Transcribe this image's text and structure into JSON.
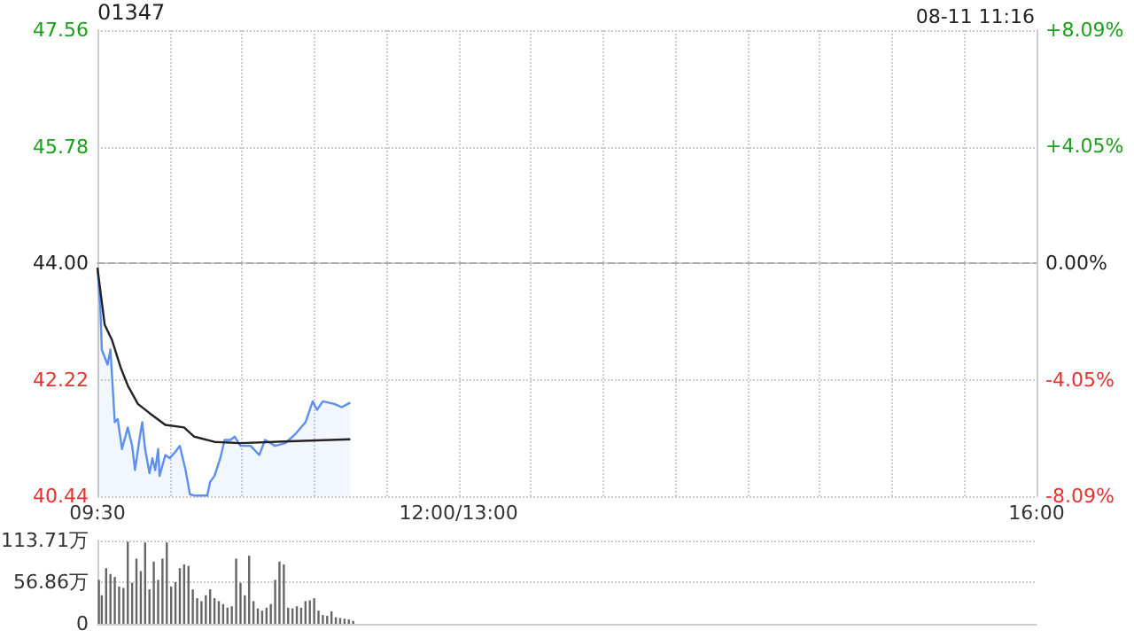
{
  "chart_data": [
    {
      "type": "line",
      "title": "01347",
      "annotations": [
        "08-11 11:16"
      ],
      "xlim": [
        9.5,
        16
      ],
      "xticks": [
        {
          "value": 9.5,
          "label": "09:30"
        },
        {
          "value": 10,
          "label": null
        },
        {
          "value": 10.5,
          "label": null
        },
        {
          "value": 11,
          "label": null
        },
        {
          "value": 11.5,
          "label": null
        },
        {
          "value": 12,
          "label": "12:00/13:00"
        },
        {
          "value": 12.5,
          "label": null
        },
        {
          "value": 13,
          "label": null
        },
        {
          "value": 13.5,
          "label": null
        },
        {
          "value": 14,
          "label": null
        },
        {
          "value": 14.5,
          "label": null
        },
        {
          "value": 15,
          "label": null
        },
        {
          "value": 15.5,
          "label": null
        },
        {
          "value": 16,
          "label": "16:00"
        }
      ],
      "ylim": [
        40.44,
        47.56
      ],
      "yticks": [
        {
          "value": 40.44,
          "label": "40.44"
        },
        {
          "value": 42.22,
          "label": "42.22"
        },
        {
          "value": 44,
          "label": "44.00"
        },
        {
          "value": 45.78,
          "label": "45.78"
        },
        {
          "value": 47.56,
          "label": "47.56"
        }
      ],
      "y2lim": [
        -8.09,
        8.09
      ],
      "y2ticks": [
        {
          "value": -8.09,
          "label": "-8.09%"
        },
        {
          "value": -4.05,
          "label": "-4.05%"
        },
        {
          "value": 0,
          "label": "0.00%"
        },
        {
          "value": 4.05,
          "label": "+4.05%"
        },
        {
          "value": 8.09,
          "label": "+8.09%"
        }
      ],
      "ref_lines": [
        {
          "axis": "y",
          "value": 44,
          "color": "#aaaaaa",
          "line_style": "dashed"
        }
      ],
      "grid": true,
      "marker": "none",
      "series": [
        {
          "type": "area",
          "color": "#5b8ff0",
          "x": [
            9.5,
            9.52,
            9.53,
            9.57,
            9.59,
            9.6,
            9.62,
            9.64,
            9.67,
            9.71,
            9.74,
            9.76,
            9.79,
            9.81,
            9.83,
            9.86,
            9.88,
            9.9,
            9.92,
            9.93,
            9.97,
            10.0,
            10.04,
            10.07,
            10.11,
            10.14,
            10.17,
            10.23,
            10.26,
            10.28,
            10.31,
            10.35,
            10.38,
            10.42,
            10.45,
            10.49,
            10.56,
            10.62,
            10.66,
            10.73,
            10.8,
            10.87,
            10.94,
            10.99,
            11.02,
            11.06,
            11.14,
            11.19,
            11.25
          ],
          "values": [
            43.93,
            43.33,
            42.68,
            42.45,
            42.68,
            42.31,
            41.57,
            41.62,
            41.16,
            41.49,
            41.21,
            40.84,
            41.3,
            41.57,
            41.16,
            40.79,
            41.02,
            40.84,
            41.16,
            40.75,
            41.07,
            41.02,
            41.12,
            41.21,
            40.84,
            40.47,
            40.45,
            40.45,
            40.45,
            40.66,
            40.75,
            41.02,
            41.3,
            41.3,
            41.35,
            41.21,
            41.21,
            41.07,
            41.3,
            41.21,
            41.25,
            41.39,
            41.57,
            41.89,
            41.76,
            41.89,
            41.85,
            41.8,
            41.87
          ]
        },
        {
          "color": "#222222",
          "x": [
            9.5,
            9.55,
            9.6,
            9.66,
            9.71,
            9.78,
            9.86,
            9.97,
            10.1,
            10.17,
            10.31,
            10.49,
            10.83,
            11.25
          ],
          "values": [
            43.93,
            43.06,
            42.83,
            42.41,
            42.13,
            41.85,
            41.71,
            41.53,
            41.49,
            41.35,
            41.27,
            41.25,
            41.28,
            41.31
          ]
        }
      ]
    },
    {
      "type": "bar",
      "xlim": [
        9.5,
        16
      ],
      "ylim": [
        0,
        113.71
      ],
      "yticks": [
        {
          "value": 0,
          "label": "0"
        },
        {
          "value": 56.86,
          "label": "56.86万"
        },
        {
          "value": 113.71,
          "label": "113.71万"
        }
      ],
      "tick_labels": "y",
      "grid": "y",
      "x": [
        9.51,
        9.53,
        9.56,
        9.59,
        9.62,
        9.65,
        9.68,
        9.71,
        9.74,
        9.77,
        9.8,
        9.83,
        9.86,
        9.89,
        9.92,
        9.95,
        9.98,
        10.01,
        10.04,
        10.07,
        10.1,
        10.13,
        10.16,
        10.19,
        10.22,
        10.25,
        10.28,
        10.31,
        10.34,
        10.37,
        10.4,
        10.43,
        10.46,
        10.49,
        10.52,
        10.55,
        10.58,
        10.61,
        10.64,
        10.67,
        10.7,
        10.73,
        10.76,
        10.79,
        10.82,
        10.85,
        10.88,
        10.91,
        10.94,
        10.97,
        11.0,
        11.03,
        11.06,
        11.09,
        11.12,
        11.15,
        11.18,
        11.21,
        11.24,
        11.27
      ],
      "series": [
        {
          "color": "#666666",
          "values": [
            60,
            39,
            76,
            68,
            64,
            51,
            49,
            112,
            56,
            89,
            72,
            111,
            47,
            85,
            60,
            89,
            111,
            51,
            57,
            76,
            81,
            79,
            47,
            35,
            31,
            39,
            47,
            35,
            31,
            27,
            22,
            24,
            89,
            56,
            39,
            93,
            31,
            21,
            18,
            22,
            27,
            60,
            85,
            81,
            22,
            21,
            24,
            22,
            31,
            32,
            35,
            18,
            12,
            11,
            17,
            9,
            8,
            7,
            6,
            4
          ]
        }
      ]
    }
  ]
}
